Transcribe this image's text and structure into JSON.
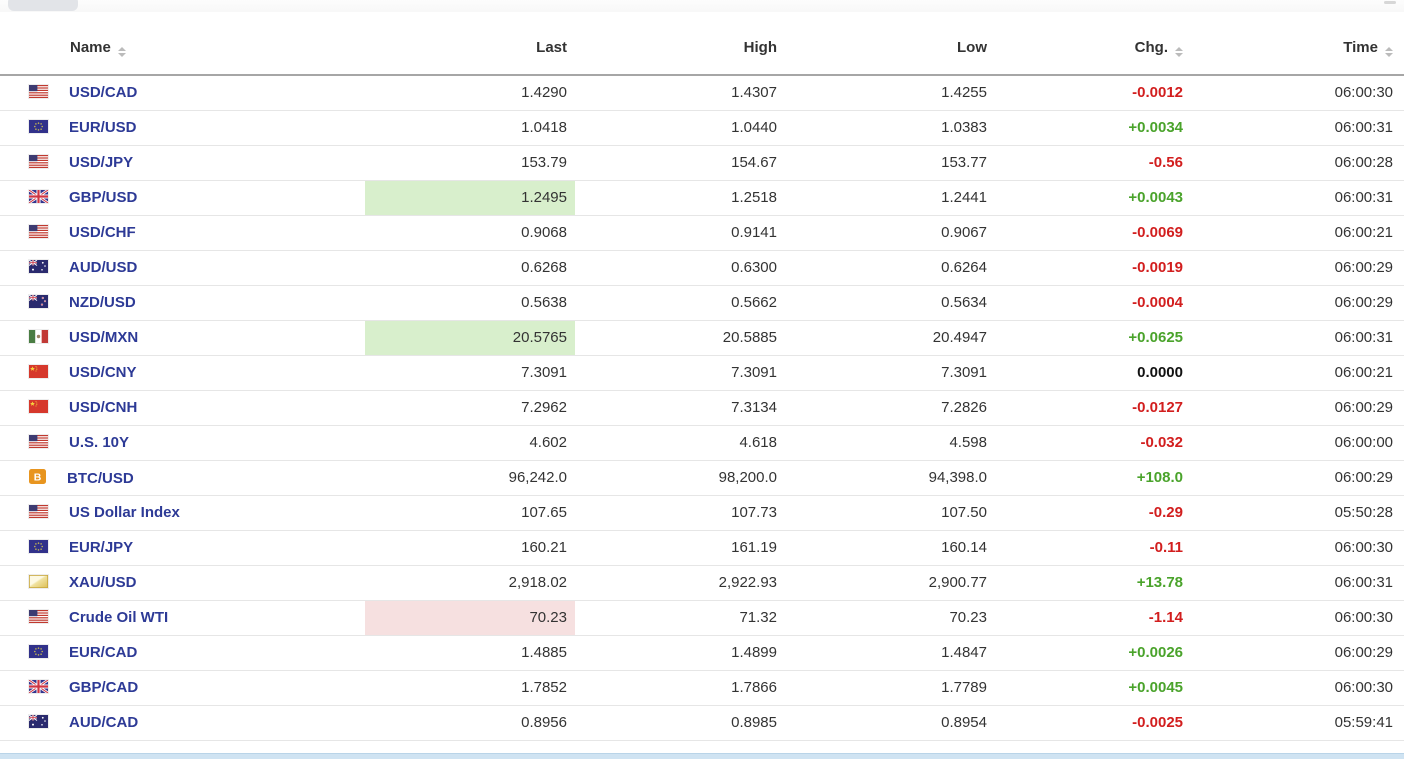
{
  "table": {
    "headers": [
      {
        "key": "name",
        "label": "Name",
        "sortable": true
      },
      {
        "key": "last",
        "label": "Last",
        "sortable": false
      },
      {
        "key": "high",
        "label": "High",
        "sortable": false
      },
      {
        "key": "low",
        "label": "Low",
        "sortable": false
      },
      {
        "key": "chg",
        "label": "Chg.",
        "sortable": true
      },
      {
        "key": "time",
        "label": "Time",
        "sortable": true
      }
    ],
    "rows": [
      {
        "icon": "us-flag",
        "name": "USD/CAD",
        "last": "1.4290",
        "high": "1.4307",
        "low": "1.4255",
        "chg": "-0.0012",
        "chg_dir": "down",
        "time": "06:00:30",
        "last_flash": null
      },
      {
        "icon": "eu-flag",
        "name": "EUR/USD",
        "last": "1.0418",
        "high": "1.0440",
        "low": "1.0383",
        "chg": "+0.0034",
        "chg_dir": "up",
        "time": "06:00:31",
        "last_flash": null
      },
      {
        "icon": "us-flag",
        "name": "USD/JPY",
        "last": "153.79",
        "high": "154.67",
        "low": "153.77",
        "chg": "-0.56",
        "chg_dir": "down",
        "time": "06:00:28",
        "last_flash": null
      },
      {
        "icon": "gb-flag",
        "name": "GBP/USD",
        "last": "1.2495",
        "high": "1.2518",
        "low": "1.2441",
        "chg": "+0.0043",
        "chg_dir": "up",
        "time": "06:00:31",
        "last_flash": "up"
      },
      {
        "icon": "us-flag",
        "name": "USD/CHF",
        "last": "0.9068",
        "high": "0.9141",
        "low": "0.9067",
        "chg": "-0.0069",
        "chg_dir": "down",
        "time": "06:00:21",
        "last_flash": null
      },
      {
        "icon": "au-flag",
        "name": "AUD/USD",
        "last": "0.6268",
        "high": "0.6300",
        "low": "0.6264",
        "chg": "-0.0019",
        "chg_dir": "down",
        "time": "06:00:29",
        "last_flash": null
      },
      {
        "icon": "nz-flag",
        "name": "NZD/USD",
        "last": "0.5638",
        "high": "0.5662",
        "low": "0.5634",
        "chg": "-0.0004",
        "chg_dir": "down",
        "time": "06:00:29",
        "last_flash": null
      },
      {
        "icon": "mx-flag",
        "name": "USD/MXN",
        "last": "20.5765",
        "high": "20.5885",
        "low": "20.4947",
        "chg": "+0.0625",
        "chg_dir": "up",
        "time": "06:00:31",
        "last_flash": "up"
      },
      {
        "icon": "cn-flag",
        "name": "USD/CNY",
        "last": "7.3091",
        "high": "7.3091",
        "low": "7.3091",
        "chg": "0.0000",
        "chg_dir": "flat",
        "time": "06:00:21",
        "last_flash": null
      },
      {
        "icon": "cn-flag",
        "name": "USD/CNH",
        "last": "7.2962",
        "high": "7.3134",
        "low": "7.2826",
        "chg": "-0.0127",
        "chg_dir": "down",
        "time": "06:00:29",
        "last_flash": null
      },
      {
        "icon": "us-flag",
        "name": "U.S. 10Y",
        "last": "4.602",
        "high": "4.618",
        "low": "4.598",
        "chg": "-0.032",
        "chg_dir": "down",
        "time": "06:00:00",
        "last_flash": null
      },
      {
        "icon": "btc",
        "name": "BTC/USD",
        "last": "96,242.0",
        "high": "98,200.0",
        "low": "94,398.0",
        "chg": "+108.0",
        "chg_dir": "up",
        "time": "06:00:29",
        "last_flash": null
      },
      {
        "icon": "us-flag",
        "name": "US Dollar Index",
        "last": "107.65",
        "high": "107.73",
        "low": "107.50",
        "chg": "-0.29",
        "chg_dir": "down",
        "time": "05:50:28",
        "last_flash": null
      },
      {
        "icon": "eu-flag",
        "name": "EUR/JPY",
        "last": "160.21",
        "high": "161.19",
        "low": "160.14",
        "chg": "-0.11",
        "chg_dir": "down",
        "time": "06:00:30",
        "last_flash": null
      },
      {
        "icon": "gold-bar",
        "name": "XAU/USD",
        "last": "2,918.02",
        "high": "2,922.93",
        "low": "2,900.77",
        "chg": "+13.78",
        "chg_dir": "up",
        "time": "06:00:31",
        "last_flash": null
      },
      {
        "icon": "us-flag",
        "name": "Crude Oil WTI",
        "last": "70.23",
        "high": "71.32",
        "low": "70.23",
        "chg": "-1.14",
        "chg_dir": "down",
        "time": "06:00:30",
        "last_flash": "down"
      },
      {
        "icon": "eu-flag",
        "name": "EUR/CAD",
        "last": "1.4885",
        "high": "1.4899",
        "low": "1.4847",
        "chg": "+0.0026",
        "chg_dir": "up",
        "time": "06:00:29",
        "last_flash": null
      },
      {
        "icon": "gb-flag",
        "name": "GBP/CAD",
        "last": "1.7852",
        "high": "1.7866",
        "low": "1.7789",
        "chg": "+0.0045",
        "chg_dir": "up",
        "time": "06:00:30",
        "last_flash": null
      },
      {
        "icon": "au-flag",
        "name": "AUD/CAD",
        "last": "0.8956",
        "high": "0.8985",
        "low": "0.8954",
        "chg": "-0.0025",
        "chg_dir": "down",
        "time": "05:59:41",
        "last_flash": null
      }
    ]
  },
  "colors": {
    "link": "#2d3a96",
    "up": "#4aa32b",
    "down": "#d21e1e",
    "neutral": "#111111",
    "flash_up": "#d8efcc",
    "flash_down": "#f6e0e0",
    "bottom_strip": "#cfe3f2"
  }
}
